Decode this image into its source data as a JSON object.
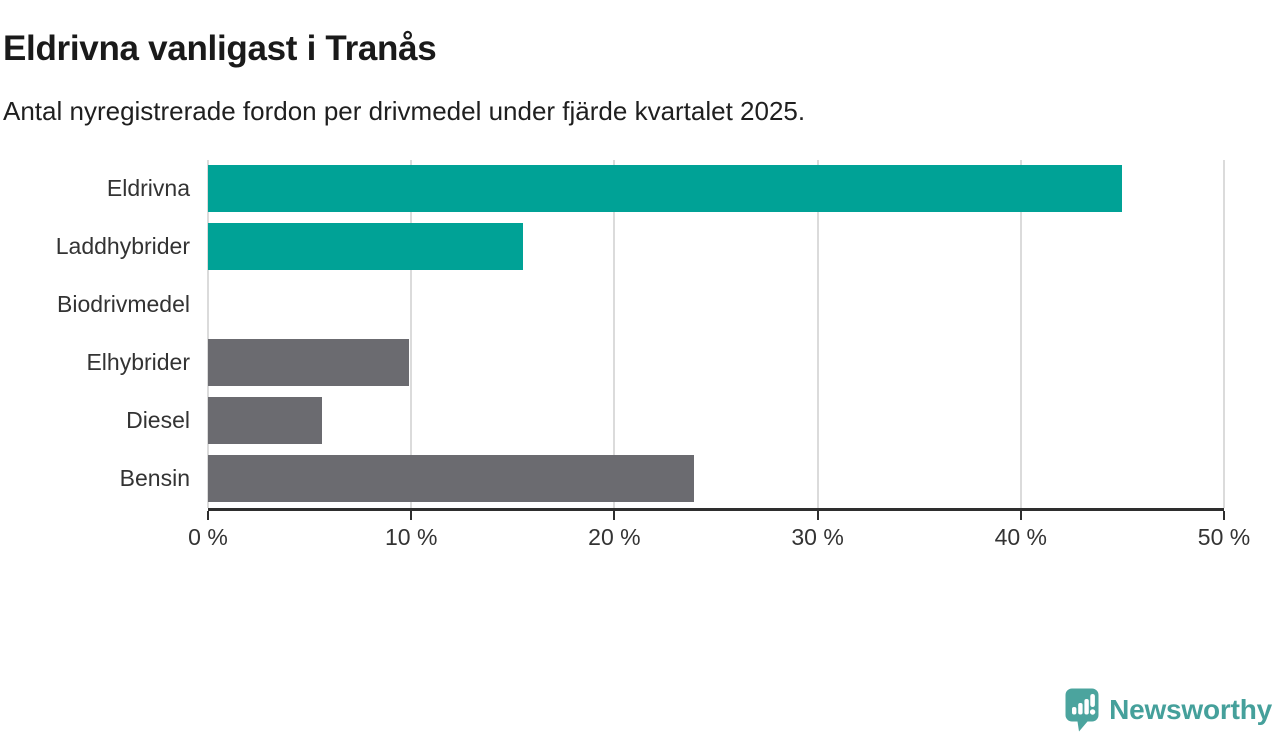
{
  "header": {
    "title": "Eldrivna vanligast i Tranås",
    "subtitle": "Antal nyregistrerade fordon per drivmedel under fjärde kvartalet 2025."
  },
  "chart_data": {
    "type": "bar",
    "orientation": "horizontal",
    "title": "Eldrivna vanligast i Tranås",
    "subtitle": "Antal nyregistrerade fordon per drivmedel under fjärde kvartalet 2025.",
    "categories": [
      "Eldrivna",
      "Laddhybrider",
      "Biodrivmedel",
      "Elhybrider",
      "Diesel",
      "Bensin"
    ],
    "values": [
      45,
      15.5,
      0,
      9.9,
      5.6,
      23.9
    ],
    "unit": "%",
    "xlim": [
      0,
      50
    ],
    "x_ticks": [
      0,
      10,
      20,
      30,
      40,
      50
    ],
    "x_tick_labels": [
      "0 %",
      "10 %",
      "20 %",
      "30 %",
      "40 %",
      "50 %"
    ],
    "grid": true,
    "legend": false,
    "bar_colors": [
      "#00a296",
      "#00a296",
      "#00a296",
      "#6b6b70",
      "#6b6b70",
      "#6b6b70"
    ]
  },
  "colors": {
    "teal": "#00a296",
    "gray": "#6b6b70",
    "axis": "#2e2e2e",
    "gridline": "#dbdbdb",
    "title_text": "#1a1a1a",
    "label_text": "#333333",
    "brand": "#45a09b"
  },
  "footer": {
    "brand_label": "Newsworthy"
  }
}
